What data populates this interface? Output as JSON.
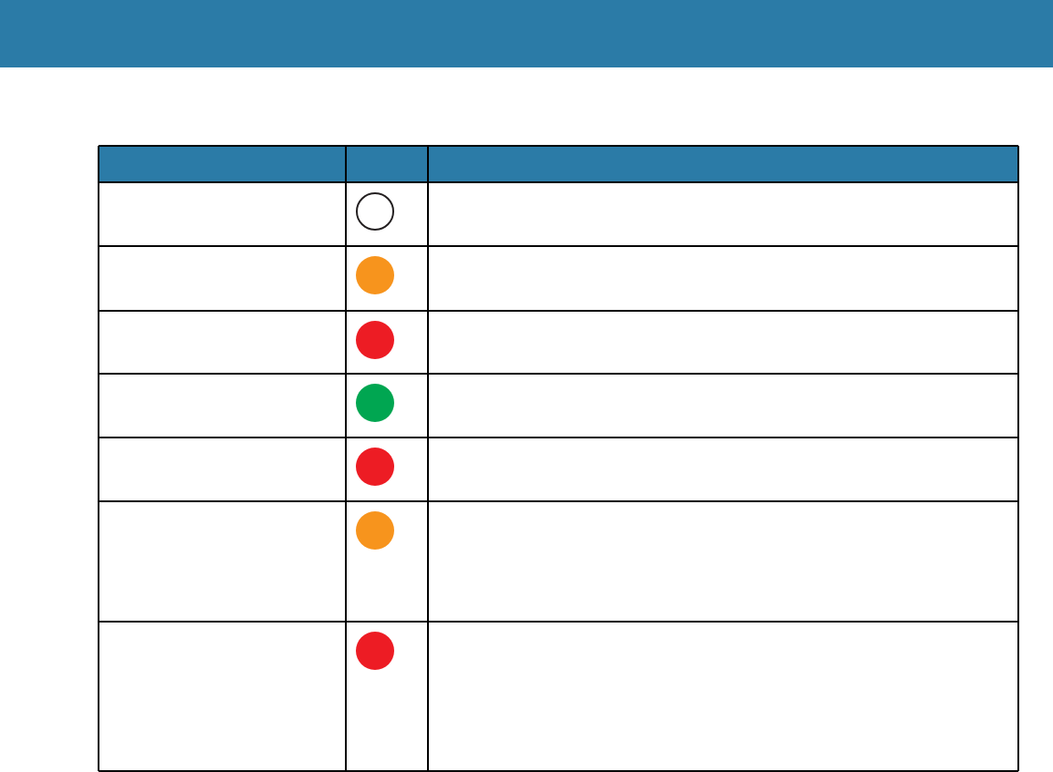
{
  "table": {
    "rows": [
      {
        "indicator": {
          "fill": "#ffffff",
          "outline": "#231f20"
        }
      },
      {
        "indicator": {
          "fill": "#f7941d"
        }
      },
      {
        "indicator": {
          "fill": "#ed1c24"
        }
      },
      {
        "indicator": {
          "fill": "#00a651"
        }
      },
      {
        "indicator": {
          "fill": "#ed1c24"
        }
      },
      {
        "indicator": {
          "fill": "#f7941d"
        }
      },
      {
        "indicator": {
          "fill": "#ed1c24"
        }
      }
    ]
  }
}
